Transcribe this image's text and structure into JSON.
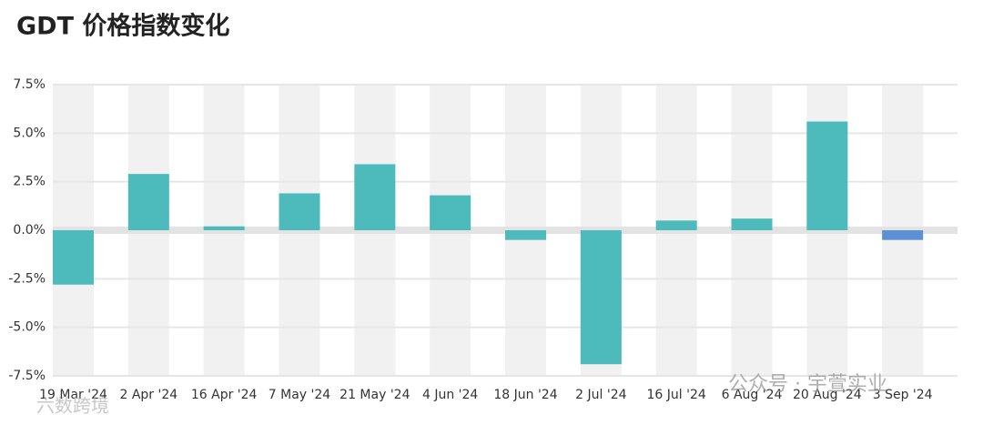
{
  "chart_data": {
    "type": "bar",
    "title": "GDT 价格指数变化",
    "categories": [
      "19 Mar '24",
      "2 Apr '24",
      "16 Apr '24",
      "7 May '24",
      "21 May '24",
      "4 Jun '24",
      "18 Jun '24",
      "2 Jul '24",
      "16 Jul '24",
      "6 Aug '24",
      "20 Aug '24",
      "3 Sep '24"
    ],
    "values": [
      -2.8,
      2.9,
      0.2,
      1.9,
      3.4,
      1.8,
      -0.5,
      -6.9,
      0.5,
      0.6,
      5.6,
      -0.5
    ],
    "colors": [
      "#4dbbbb",
      "#4dbbbb",
      "#4dbbbb",
      "#4dbbbb",
      "#4dbbbb",
      "#4dbbbb",
      "#4dbbbb",
      "#4dbbbb",
      "#4dbbbb",
      "#4dbbbb",
      "#4dbbbb",
      "#5b8fd6"
    ],
    "ylim": [
      -7.5,
      7.5
    ],
    "yticks": [
      {
        "value": 7.5,
        "label": "7.5%"
      },
      {
        "value": 5,
        "label": "5.0%"
      },
      {
        "value": 2.5,
        "label": "2.5%"
      },
      {
        "value": 0,
        "label": "0.0%"
      },
      {
        "value": -2.5,
        "label": "-2.5%"
      },
      {
        "value": -5,
        "label": "-5.0%"
      },
      {
        "value": -7.5,
        "label": "-7.5%"
      }
    ],
    "grid": true
  },
  "watermarks": [
    "公众号 · 宇萱实业",
    "六数跨境"
  ]
}
